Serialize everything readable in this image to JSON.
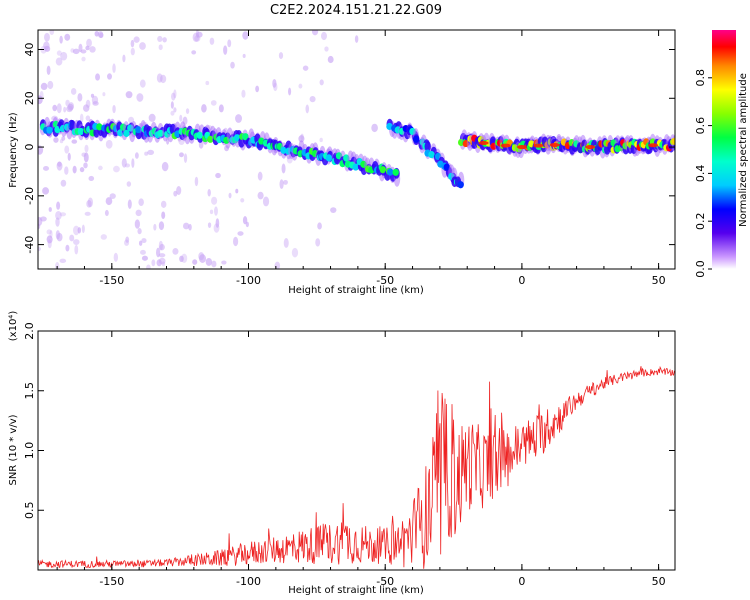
{
  "title": "C2E2.2024.151.21.22.G09",
  "chart_data": [
    {
      "type": "heatmap",
      "xlabel": "Height of straight line (km)",
      "ylabel": "Frequency (Hz)",
      "xlim": [
        -177,
        56
      ],
      "ylim": [
        -50,
        48
      ],
      "xticks": [
        -150,
        -100,
        -50,
        0,
        50
      ],
      "yticks": [
        -40,
        -20,
        0,
        20,
        40
      ],
      "xtick_labels": [
        "-150",
        "-100",
        "-50",
        "0",
        "50"
      ],
      "ytick_labels": [
        "-40",
        "-20",
        "0",
        "20",
        "40"
      ],
      "colorbar": {
        "label": "Normalized spectral amplitude",
        "range": [
          0,
          1
        ],
        "ticks": [
          0,
          0.2,
          0.4,
          0.6,
          0.8
        ],
        "tick_labels": [
          "0.0",
          "0.2",
          "0.4",
          "0.6",
          "0.8"
        ]
      },
      "features": [
        {
          "name": "main-trace",
          "x": [
            -175,
            -150,
            -125,
            -100,
            -75,
            -60,
            -50,
            -45
          ],
          "y": [
            8,
            7,
            6,
            3,
            -3,
            -7,
            -10,
            -12
          ],
          "amplitude": 0.5
        },
        {
          "name": "fork-trace",
          "x": [
            -48,
            -40,
            -35,
            -30,
            -25,
            -22
          ],
          "y": [
            8,
            6,
            0,
            -6,
            -12,
            -16
          ],
          "amplitude": 0.4
        },
        {
          "name": "flat-trace",
          "x": [
            -22,
            -10,
            0,
            10,
            25,
            40,
            56
          ],
          "y": [
            3,
            1,
            0,
            1,
            0,
            0.5,
            1
          ],
          "amplitude": 0.8
        }
      ]
    },
    {
      "type": "line",
      "xlabel": "Height of straight line (km)",
      "ylabel": "SNR (10 * v/v)",
      "y_scale_label": "(x10⁴)",
      "xlim": [
        -177,
        56
      ],
      "ylim": [
        0,
        2
      ],
      "xticks": [
        -150,
        -100,
        -50,
        0,
        50
      ],
      "yticks": [
        0.5,
        1.0,
        1.5,
        2.0
      ],
      "xtick_labels": [
        "-150",
        "-100",
        "-50",
        "0",
        "50"
      ],
      "ytick_labels": [
        "0.5",
        "1.0",
        "1.5",
        "2.0"
      ],
      "series": [
        {
          "color": "#ee2222",
          "x": [
            -177,
            -160,
            -140,
            -130,
            -120,
            -110,
            -100,
            -90,
            -80,
            -70,
            -65,
            -60,
            -55,
            -50,
            -45,
            -40,
            -35,
            -32,
            -29,
            -27,
            -25,
            -22,
            -20,
            -15,
            -10,
            -5,
            0,
            5,
            10,
            15,
            20,
            25,
            30,
            35,
            40,
            45,
            50,
            56
          ],
          "y": [
            0.05,
            0.05,
            0.05,
            0.06,
            0.08,
            0.1,
            0.14,
            0.17,
            0.2,
            0.22,
            0.25,
            0.23,
            0.2,
            0.2,
            0.22,
            0.3,
            0.45,
            0.6,
            0.7,
            0.85,
            0.75,
            0.8,
            0.9,
            0.85,
            0.9,
            0.95,
            1.05,
            1.1,
            1.2,
            1.3,
            1.42,
            1.5,
            1.56,
            1.6,
            1.63,
            1.65,
            1.66,
            1.65
          ],
          "noise": [
            0.03,
            0.03,
            0.03,
            0.03,
            0.05,
            0.07,
            0.1,
            0.12,
            0.15,
            0.18,
            0.2,
            0.18,
            0.15,
            0.15,
            0.2,
            0.3,
            0.45,
            0.6,
            0.7,
            0.6,
            0.55,
            0.45,
            0.4,
            0.35,
            0.3,
            0.25,
            0.2,
            0.2,
            0.18,
            0.12,
            0.08,
            0.06,
            0.05,
            0.04,
            0.04,
            0.03,
            0.03,
            0.03
          ]
        }
      ]
    }
  ]
}
